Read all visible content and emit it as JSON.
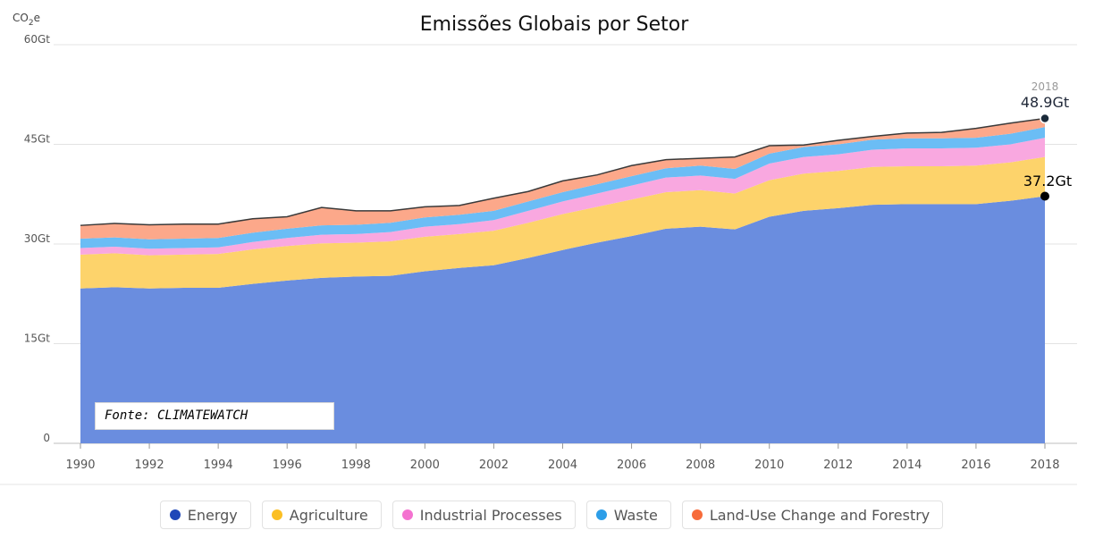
{
  "chart_data": {
    "type": "area",
    "stacked": true,
    "title": "Emissões Globais por Setor",
    "ylabel": "CO2e",
    "ylabel_base": "CO",
    "ylabel_sub": "2",
    "ylabel_suffix": "e",
    "ylim": [
      0,
      60
    ],
    "yticks": [
      0,
      15,
      30,
      45,
      60
    ],
    "ytick_labels": [
      "0",
      "15Gt",
      "30Gt",
      "45Gt",
      "60Gt"
    ],
    "xlim": [
      1990,
      2018
    ],
    "xticks": [
      1990,
      1992,
      1994,
      1996,
      1998,
      2000,
      2002,
      2004,
      2006,
      2008,
      2010,
      2012,
      2014,
      2016,
      2018
    ],
    "xtick_labels": [
      "1990",
      "1992",
      "1994",
      "1996",
      "1998",
      "2000",
      "2002",
      "2004",
      "2006",
      "2008",
      "2010",
      "2012",
      "2014",
      "2016",
      "2018"
    ],
    "x": [
      1990,
      1991,
      1992,
      1993,
      1994,
      1995,
      1996,
      1997,
      1998,
      1999,
      2000,
      2001,
      2002,
      2003,
      2004,
      2005,
      2006,
      2007,
      2008,
      2009,
      2010,
      2011,
      2012,
      2013,
      2014,
      2015,
      2016,
      2017,
      2018
    ],
    "series": [
      {
        "name": "Energy",
        "color": "#6a8ddf",
        "dot": "#1f47b8",
        "values": [
          23.3,
          23.5,
          23.3,
          23.4,
          23.4,
          24.0,
          24.5,
          24.9,
          25.1,
          25.2,
          25.9,
          26.4,
          26.8,
          27.9,
          29.1,
          30.2,
          31.2,
          32.3,
          32.6,
          32.2,
          34.1,
          35.0,
          35.4,
          35.9,
          36.0,
          36.0,
          36.0,
          36.5,
          37.2
        ]
      },
      {
        "name": "Agriculture",
        "color": "#fdd36b",
        "dot": "#fbbf24",
        "values": [
          5.1,
          5.1,
          5.0,
          5.0,
          5.1,
          5.2,
          5.2,
          5.2,
          5.1,
          5.2,
          5.2,
          5.1,
          5.2,
          5.3,
          5.4,
          5.4,
          5.5,
          5.5,
          5.5,
          5.4,
          5.5,
          5.6,
          5.6,
          5.7,
          5.7,
          5.7,
          5.8,
          5.8,
          5.9
        ]
      },
      {
        "name": "Industrial Processes",
        "color": "#f9a8e0",
        "dot": "#f472d0",
        "values": [
          1.0,
          1.0,
          1.0,
          1.0,
          1.0,
          1.1,
          1.2,
          1.3,
          1.3,
          1.4,
          1.5,
          1.5,
          1.6,
          1.8,
          1.9,
          2.0,
          2.1,
          2.2,
          2.2,
          2.2,
          2.5,
          2.5,
          2.5,
          2.6,
          2.7,
          2.7,
          2.7,
          2.7,
          2.9
        ]
      },
      {
        "name": "Waste",
        "color": "#6bbdf5",
        "dot": "#2d9ee8",
        "values": [
          1.4,
          1.4,
          1.4,
          1.4,
          1.4,
          1.4,
          1.4,
          1.4,
          1.4,
          1.4,
          1.4,
          1.4,
          1.4,
          1.4,
          1.4,
          1.4,
          1.4,
          1.4,
          1.5,
          1.5,
          1.5,
          1.5,
          1.5,
          1.5,
          1.5,
          1.5,
          1.5,
          1.6,
          1.6
        ]
      },
      {
        "name": "Land-Use Change and Forestry",
        "color": "#fca88a",
        "dot": "#f76b3a",
        "values": [
          2.0,
          2.1,
          2.2,
          2.2,
          2.1,
          2.1,
          1.8,
          2.7,
          2.1,
          1.8,
          1.6,
          1.4,
          1.9,
          1.5,
          1.7,
          1.4,
          1.6,
          1.3,
          1.1,
          1.8,
          1.2,
          0.3,
          0.6,
          0.5,
          0.8,
          0.9,
          1.4,
          1.6,
          1.3
        ]
      }
    ],
    "annotations": [
      {
        "year_label": "2018",
        "value_label": "48.9Gt",
        "x": 2018,
        "y": 48.9
      },
      {
        "value_label": "37.2Gt",
        "x": 2018,
        "y": 37.2
      }
    ],
    "source": "Fonte: CLIMATEWATCH"
  },
  "legend": [
    {
      "name": "Energy",
      "color": "#1f47b8"
    },
    {
      "name": "Agriculture",
      "color": "#fbbf24"
    },
    {
      "name": "Industrial Processes",
      "color": "#f472d0"
    },
    {
      "name": "Waste",
      "color": "#2d9ee8"
    },
    {
      "name": "Land-Use Change and Forestry",
      "color": "#f76b3a"
    }
  ]
}
